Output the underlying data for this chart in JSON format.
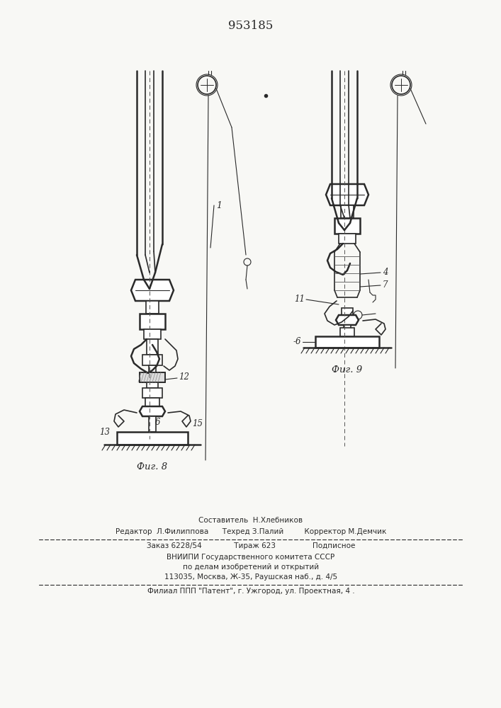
{
  "title": "953185",
  "bg_color": "#f8f8f5",
  "line_color": "#2a2a2a",
  "fig8_label": "Фиг. 8",
  "fig9_label": "Фиг. 9",
  "footer": {
    "line1": "Составитель  Н.Хлебников",
    "line2": "Редактор  Л.Филиппова      Техред З.Палий         Корректор М.Демчик",
    "line3": "Заказ 6228/54              Тираж 623                Подписное",
    "line4": "ВНИИПИ Государственного комитета СССР",
    "line5": "по делам изобретений и открытий",
    "line6": "113035, Москва, Ж-35, Раушская наб., д. 4/5",
    "line7": "Филиал ППП \"Патент\", г. Ужгород, ул. Проектная, 4 ."
  }
}
